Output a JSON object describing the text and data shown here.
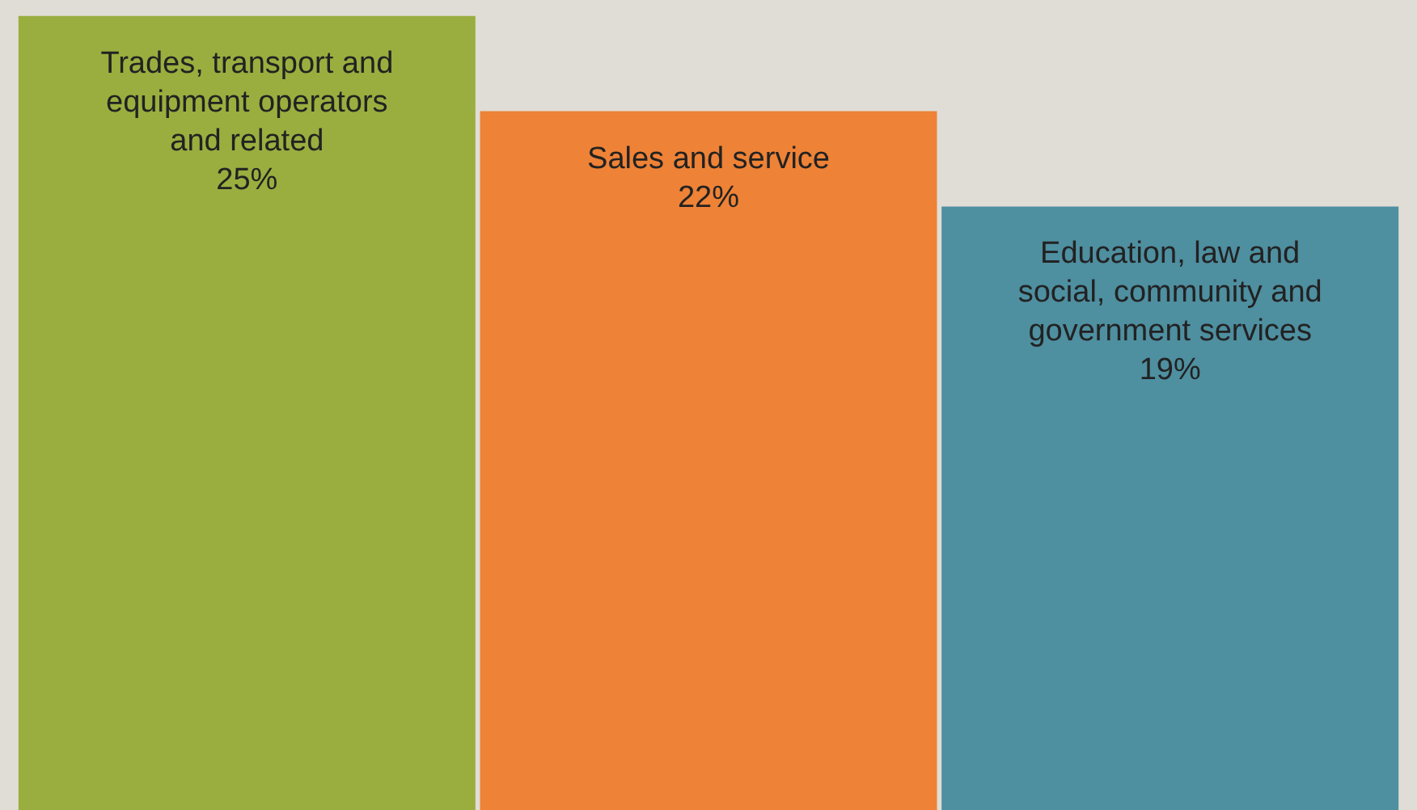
{
  "chart_data": {
    "type": "bar",
    "categories": [
      "Trades, transport and equipment operators and related",
      "Sales and service",
      "Education, law and social, community and government services"
    ],
    "values": [
      25,
      22,
      19
    ],
    "colors": [
      "#9aae3f",
      "#ee8236",
      "#4e8fa0"
    ],
    "value_labels": [
      "25%",
      "22%",
      "19%"
    ]
  }
}
